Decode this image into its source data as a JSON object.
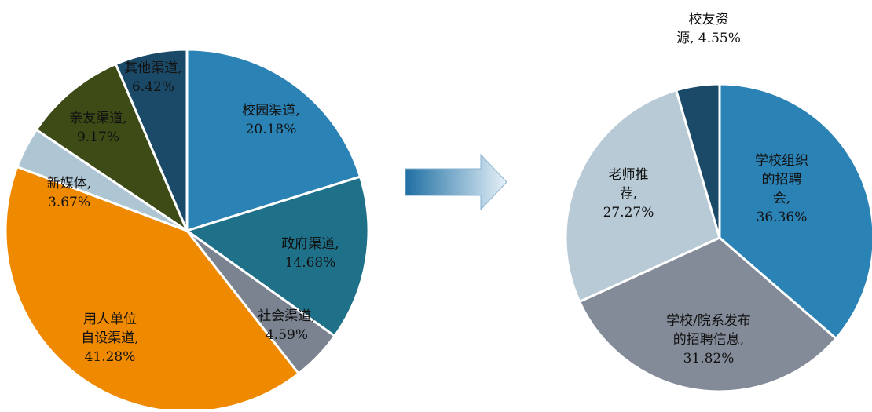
{
  "chart_data": [
    {
      "type": "pie",
      "title": "",
      "slices": [
        {
          "label": "校园渠道",
          "value": 20.18,
          "display": [
            "校园渠道,",
            "20.18%"
          ],
          "color": "#2b82b5"
        },
        {
          "label": "政府渠道",
          "value": 14.68,
          "display": [
            "政府渠道,",
            "14.68%"
          ],
          "color": "#1f7189"
        },
        {
          "label": "社会渠道",
          "value": 4.59,
          "display": [
            "社会渠道,",
            "4.59%"
          ],
          "color": "#7b8390"
        },
        {
          "label": "用人单位自设渠道",
          "value": 41.28,
          "display": [
            "用人单位",
            "自设渠道,",
            "41.28%"
          ],
          "color": "#ef8a00"
        },
        {
          "label": "新媒体",
          "value": 3.67,
          "display": [
            "新媒体,",
            "3.67%"
          ],
          "color": "#aec6d3"
        },
        {
          "label": "亲友渠道",
          "value": 9.17,
          "display": [
            "亲友渠道,",
            "9.17%"
          ],
          "color": "#3d4b16"
        },
        {
          "label": "其他渠道",
          "value": 6.42,
          "display": [
            "其他渠道,",
            "6.42%"
          ],
          "color": "#1b4a68"
        }
      ]
    },
    {
      "type": "pie",
      "title": "",
      "slices": [
        {
          "label": "学校组织的招聘会",
          "value": 36.36,
          "display": [
            "学校组织",
            "的招聘",
            "会,",
            "36.36%"
          ],
          "color": "#2b82b5"
        },
        {
          "label": "学校/院系发布的招聘信息",
          "value": 31.82,
          "display": [
            "学校/院系发布",
            "的招聘信息,",
            "31.82%"
          ],
          "color": "#848b98"
        },
        {
          "label": "老师推荐",
          "value": 27.27,
          "display": [
            "老师推",
            "荐,",
            "27.27%"
          ],
          "color": "#b7cad6"
        },
        {
          "label": "校友资源",
          "value": 4.55,
          "display": [
            "校友资",
            "源, 4.55%"
          ],
          "color": "#1b4a68"
        }
      ]
    }
  ],
  "arrow": {
    "icon": "right-arrow-icon",
    "color_light": "#e6f1f8",
    "color_dark": "#1f6fa3"
  }
}
